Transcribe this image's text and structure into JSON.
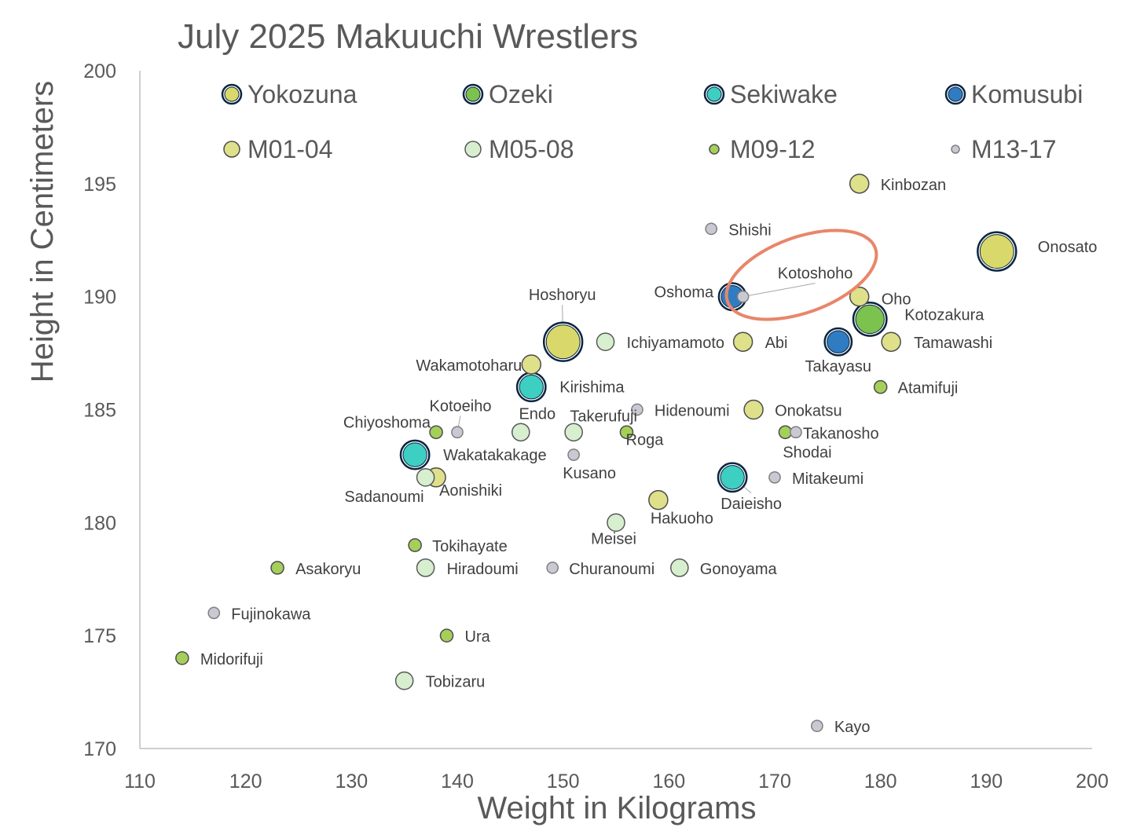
{
  "chart_data": {
    "type": "scatter",
    "title": "July 2025 Makuuchi Wrestlers",
    "xlabel": "Weight in Kilograms",
    "ylabel": "Height in Centimeters",
    "xlim": [
      110,
      200
    ],
    "ylim": [
      170,
      200
    ],
    "x_ticks": [
      110,
      120,
      130,
      140,
      150,
      160,
      170,
      180,
      190,
      200
    ],
    "y_ticks": [
      170,
      175,
      180,
      185,
      190,
      195,
      200
    ],
    "grid": false,
    "legend_position": "top",
    "size_encoding": "bubble area",
    "series": [
      {
        "name": "Yokozuna",
        "color": "#d9d96b",
        "border": "#0b2540",
        "points": [
          {
            "label": "Hoshoryu",
            "x": 150,
            "y": 188,
            "size": 3.2
          },
          {
            "label": "Onosato",
            "x": 191,
            "y": 192,
            "size": 3.2
          }
        ]
      },
      {
        "name": "Ozeki",
        "color": "#7cc24f",
        "border": "#0b2540",
        "points": [
          {
            "label": "Kotozakura",
            "x": 179,
            "y": 189,
            "size": 2.3
          }
        ]
      },
      {
        "name": "Sekiwake",
        "color": "#3ccfc2",
        "border": "#0b2540",
        "points": [
          {
            "label": "Kirishima",
            "x": 147,
            "y": 186,
            "size": 1.6
          },
          {
            "label": "Wakatakakage",
            "x": 136,
            "y": 183,
            "size": 1.6
          },
          {
            "label": "Daieisho",
            "x": 166,
            "y": 182,
            "size": 1.6
          }
        ]
      },
      {
        "name": "Komusubi",
        "color": "#2f7cc2",
        "border": "#0b2540",
        "points": [
          {
            "label": "Oshoma",
            "x": 166,
            "y": 190,
            "size": 1.4
          },
          {
            "label": "Takayasu",
            "x": 176,
            "y": 188,
            "size": 1.4
          }
        ]
      },
      {
        "name": "M01-04",
        "color": "#dfe08a",
        "border": "#4d4d4d",
        "points": [
          {
            "label": "Kinbozan",
            "x": 178,
            "y": 195,
            "size": 1.0
          },
          {
            "label": "Oho",
            "x": 178,
            "y": 190,
            "size": 1.0
          },
          {
            "label": "Abi",
            "x": 167,
            "y": 188,
            "size": 1.0
          },
          {
            "label": "Tamawashi",
            "x": 181,
            "y": 188,
            "size": 1.0
          },
          {
            "label": "Wakamotoharu",
            "x": 147,
            "y": 187,
            "size": 1.0
          },
          {
            "label": "Onokatsu",
            "x": 168,
            "y": 185,
            "size": 1.0
          },
          {
            "label": "Aonishiki",
            "x": 138,
            "y": 182,
            "size": 1.0
          },
          {
            "label": "Hakuoho",
            "x": 159,
            "y": 181,
            "size": 1.0
          }
        ]
      },
      {
        "name": "M05-08",
        "color": "#d7efcf",
        "border": "#595959",
        "points": [
          {
            "label": "Ichiyamamoto",
            "x": 154,
            "y": 188,
            "size": 0.85
          },
          {
            "label": "Endo",
            "x": 146,
            "y": 184,
            "size": 0.85
          },
          {
            "label": "Takerufuji",
            "x": 151,
            "y": 184,
            "size": 0.85
          },
          {
            "label": "Sadanoumi",
            "x": 137,
            "y": 182,
            "size": 0.85
          },
          {
            "label": "Meisei",
            "x": 155,
            "y": 180,
            "size": 0.85
          },
          {
            "label": "Hiradoumi",
            "x": 137,
            "y": 178,
            "size": 0.85
          },
          {
            "label": "Gonoyama",
            "x": 161,
            "y": 178,
            "size": 0.85
          },
          {
            "label": "Tobizaru",
            "x": 135,
            "y": 173,
            "size": 0.85
          }
        ]
      },
      {
        "name": "M09-12",
        "color": "#a6cf5a",
        "border": "#4d4d4d",
        "points": [
          {
            "label": "Atamifuji",
            "x": 180,
            "y": 186,
            "size": 0.45
          },
          {
            "label": "Chiyoshoma",
            "x": 138,
            "y": 184,
            "size": 0.45
          },
          {
            "label": "Roga",
            "x": 156,
            "y": 184,
            "size": 0.45
          },
          {
            "label": "Shodai",
            "x": 171,
            "y": 184,
            "size": 0.45
          },
          {
            "label": "Tokihayate",
            "x": 136,
            "y": 179,
            "size": 0.45
          },
          {
            "label": "Asakoryu",
            "x": 123,
            "y": 178,
            "size": 0.45
          },
          {
            "label": "Ura",
            "x": 139,
            "y": 175,
            "size": 0.45
          },
          {
            "label": "Midorifuji",
            "x": 114,
            "y": 174,
            "size": 0.45
          }
        ]
      },
      {
        "name": "M13-17",
        "color": "#c9c9d3",
        "border": "#7f7f7f",
        "points": [
          {
            "label": "Shishi",
            "x": 164,
            "y": 193,
            "size": 0.35
          },
          {
            "label": "Kotoshoho",
            "x": 167,
            "y": 190,
            "size": 0.35
          },
          {
            "label": "Hidenoumi",
            "x": 157,
            "y": 185,
            "size": 0.35
          },
          {
            "label": "Kotoeiho",
            "x": 140,
            "y": 184,
            "size": 0.35
          },
          {
            "label": "Takanosho",
            "x": 172,
            "y": 184,
            "size": 0.35
          },
          {
            "label": "Kusano",
            "x": 151,
            "y": 183,
            "size": 0.35
          },
          {
            "label": "Mitakeumi",
            "x": 170,
            "y": 182,
            "size": 0.35
          },
          {
            "label": "Churanoumi",
            "x": 149,
            "y": 178,
            "size": 0.35
          },
          {
            "label": "Fujinokawa",
            "x": 117,
            "y": 176,
            "size": 0.35
          },
          {
            "label": "Kayo",
            "x": 174,
            "y": 171,
            "size": 0.35
          }
        ]
      }
    ],
    "annotations": [
      {
        "type": "ellipse-highlight",
        "target": "Kotoshoho",
        "color": "#e8866a"
      }
    ]
  }
}
